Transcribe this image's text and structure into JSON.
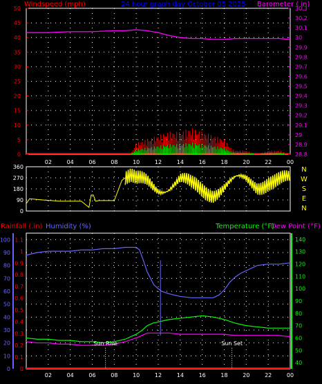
{
  "chart_data": [
    {
      "type": "line",
      "title": "24 hour graph day October 05 2025",
      "ylabel_left": "Windspeed (mph)",
      "ylabel_right": "Barometer ( in)",
      "x_ticks": [
        "02",
        "04",
        "06",
        "08",
        "10",
        "12",
        "14",
        "16",
        "18",
        "20",
        "22",
        "00"
      ],
      "y_left_ticks": [
        "0",
        "5",
        "10",
        "15",
        "20",
        "25",
        "30",
        "35",
        "40",
        "45",
        "50"
      ],
      "ylim_left": [
        0,
        50
      ],
      "y_right_ticks": [
        "28.8",
        "28.9",
        "29",
        "29.1",
        "29.2",
        "29.3",
        "29.4",
        "29.5",
        "29.6",
        "29.7",
        "29.8",
        "29.9",
        "30",
        "30.1",
        "30.2",
        "30.3"
      ],
      "ylim_right": [
        28.8,
        30.3
      ],
      "grid": true,
      "colors": {
        "wind_gust": "#ff0000",
        "wind_avg": "#00ff00",
        "barometer": "#ff00ff",
        "title": "#0000ff"
      },
      "series": [
        {
          "name": "Barometer",
          "hour": [
            0,
            2,
            4,
            6,
            8,
            9,
            10,
            11,
            12,
            13,
            14,
            15,
            16,
            17,
            18,
            19,
            20,
            21,
            22,
            23,
            24
          ],
          "values": [
            30.05,
            30.05,
            30.06,
            30.06,
            30.07,
            30.07,
            30.08,
            30.07,
            30.05,
            30.02,
            30.0,
            29.99,
            29.99,
            29.98,
            29.98,
            29.99,
            29.99,
            29.99,
            29.99,
            29.99,
            29.98
          ]
        },
        {
          "name": "Windspeed",
          "hour": [
            0,
            9.5,
            10,
            11,
            12,
            13,
            14,
            15,
            16,
            17,
            18,
            18.5,
            19,
            20,
            21,
            22,
            23,
            24
          ],
          "values": [
            0,
            0,
            3,
            4,
            5,
            6,
            6,
            7,
            6,
            5,
            4,
            2,
            1,
            1,
            0,
            1,
            1,
            0
          ]
        }
      ]
    },
    {
      "type": "line",
      "ylabel_right_letters": [
        "N",
        "W",
        "S",
        "E",
        "N"
      ],
      "y_ticks": [
        "0",
        "90",
        "180",
        "270",
        "360"
      ],
      "ylim": [
        0,
        360
      ],
      "x_ticks": [
        "02",
        "04",
        "06",
        "08",
        "10",
        "12",
        "14",
        "16",
        "18",
        "20",
        "22",
        "00"
      ],
      "colors": {
        "trace": "#ffff00",
        "labels": "#ffff00"
      },
      "series": [
        {
          "name": "Wind Direction",
          "hour": [
            0,
            0.3,
            1.5,
            3,
            4,
            5,
            5.7,
            5.9,
            6.1,
            6.3,
            6.6,
            7.5,
            8.0,
            8.7,
            9,
            9.5,
            10,
            11,
            12,
            13,
            14,
            15,
            16,
            17,
            18,
            19,
            20,
            21,
            22,
            23,
            24
          ],
          "values": [
            60,
            100,
            90,
            80,
            80,
            80,
            30,
            130,
            130,
            80,
            85,
            85,
            85,
            250,
            270,
            260,
            220,
            230,
            200,
            210,
            240,
            190,
            180,
            170,
            200,
            230,
            240,
            220,
            260,
            240,
            230
          ]
        }
      ]
    },
    {
      "type": "line",
      "ylabel_left_1": "Rainfall (.in)",
      "ylabel_left_2": "Humidity (%)",
      "ylabel_right_1": "Temperature (°F)",
      "ylabel_right_2": "Dew Point (°F)",
      "rain_ticks": [
        "0",
        "0.1",
        "0.2",
        "0.3",
        "0.4",
        "0.5",
        "0.6",
        "0.7",
        "0.8",
        "0.9",
        "1",
        "1.1"
      ],
      "rain_lim": [
        0,
        1.1
      ],
      "humidity_ticks": [
        "0",
        "10",
        "20",
        "30",
        "40",
        "50",
        "60",
        "70",
        "80",
        "90",
        "100"
      ],
      "humidity_lim": [
        0,
        100
      ],
      "temp_ticks": [
        "40",
        "50",
        "60",
        "70",
        "80",
        "90",
        "100",
        "110",
        "120",
        "130",
        "140"
      ],
      "temp_lim": [
        40,
        140
      ],
      "x_ticks": [
        "02",
        "04",
        "06",
        "08",
        "10",
        "12",
        "14",
        "16",
        "18",
        "20",
        "22",
        "00"
      ],
      "annotations": [
        {
          "label": "Sun Rise",
          "hour": 7.2
        },
        {
          "label": "Sun Set",
          "hour": 18.7
        }
      ],
      "colors": {
        "rain": "#ff0000",
        "humidity": "#6666ff",
        "temperature": "#00ff00",
        "dewpoint": "#ff00ff",
        "marker": "#6666ff"
      },
      "series": [
        {
          "name": "Humidity",
          "hour": [
            0,
            1,
            2,
            3,
            4,
            5,
            6,
            7,
            8,
            9,
            9.5,
            10,
            10.3,
            10.6,
            11,
            11.3,
            11.6,
            12,
            12.3,
            13,
            14,
            15,
            16,
            17,
            17.5,
            18,
            18.5,
            19,
            19.5,
            20,
            21,
            22,
            23,
            24
          ],
          "values": [
            88,
            90,
            91,
            91,
            91,
            92,
            92,
            93,
            93,
            94,
            94,
            94,
            92,
            85,
            75,
            70,
            65,
            62,
            60,
            58,
            56,
            55,
            55,
            55,
            57,
            61,
            67,
            71,
            74,
            76,
            80,
            81,
            81,
            82
          ]
        },
        {
          "name": "Temperature",
          "hour": [
            0,
            1,
            2,
            3,
            4,
            5,
            6,
            7,
            8,
            9,
            10,
            10.5,
            11,
            11.5,
            12,
            12.5,
            13,
            14,
            15,
            16,
            17,
            18,
            19,
            20,
            21,
            22,
            23,
            24
          ],
          "values": [
            60,
            59,
            59,
            58,
            58,
            57,
            57,
            56,
            57,
            59,
            63,
            66,
            70,
            72,
            73,
            74,
            75,
            76,
            77,
            78,
            77,
            75,
            72,
            70,
            69,
            68,
            68,
            68
          ]
        },
        {
          "name": "Dew Point",
          "hour": [
            0,
            1,
            2,
            3,
            4,
            5,
            6,
            7,
            8,
            9,
            10,
            10.5,
            11,
            12,
            13,
            14,
            15,
            16,
            17,
            18,
            19,
            20,
            21,
            22,
            23,
            24
          ],
          "values": [
            57,
            56,
            56,
            55,
            55,
            54,
            54,
            54,
            55,
            57,
            60,
            62,
            64,
            64,
            64,
            63,
            63,
            63,
            63,
            63,
            62,
            62,
            62,
            62,
            62,
            61
          ]
        },
        {
          "name": "Rainfall",
          "hour": [
            0,
            24
          ],
          "values": [
            0,
            0
          ]
        }
      ]
    }
  ]
}
